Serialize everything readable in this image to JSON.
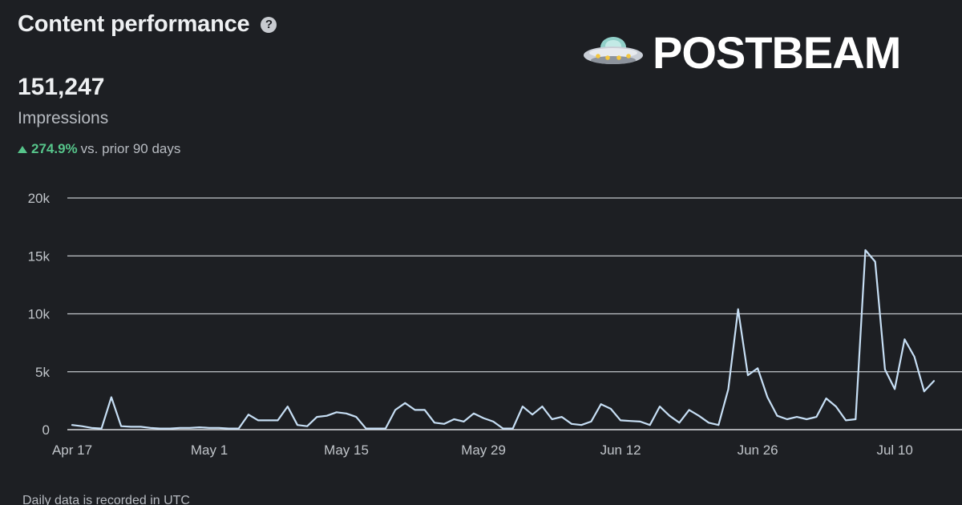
{
  "header": {
    "title": "Content performance",
    "help_icon": "help-icon"
  },
  "brand": {
    "logo_icon": "ufo-icon",
    "name": "POSTBEAM"
  },
  "metric": {
    "value": "151,247",
    "label": "Impressions",
    "change_pct": "274.9%",
    "change_suffix": "vs. prior 90 days",
    "change_color": "#56c48a"
  },
  "footnote": "Daily data is recorded in UTC",
  "chart_data": {
    "type": "line",
    "title": "",
    "xlabel": "",
    "ylabel": "",
    "ylim": [
      0,
      20000
    ],
    "yticks": [
      "0",
      "5k",
      "10k",
      "15k",
      "20k"
    ],
    "xticks": [
      "Apr 17",
      "May 1",
      "May 15",
      "May 29",
      "Jun 12",
      "Jun 26",
      "Jul 10"
    ],
    "grid": true,
    "line_color": "#c7dff5",
    "series": [
      {
        "values": [
          400,
          300,
          150,
          100,
          2800,
          300,
          250,
          250,
          150,
          100,
          100,
          150,
          150,
          200,
          150,
          150,
          100,
          100,
          1300,
          800,
          800,
          800,
          2000,
          400,
          300,
          1100,
          1200,
          1500,
          1400,
          1100,
          100,
          100,
          100,
          1700,
          2300,
          1700,
          1700,
          600,
          500,
          900,
          700,
          1400,
          1000,
          700,
          100,
          100,
          2000,
          1300,
          2000,
          900,
          1100,
          500,
          400,
          700,
          2200,
          1800,
          800,
          750,
          700,
          400,
          2000,
          1200,
          600,
          1700,
          1200,
          600,
          400,
          3500,
          10400,
          4700,
          5300,
          2800,
          1200,
          900,
          1100,
          900,
          1100,
          2700,
          2000,
          800,
          900,
          15500,
          14500,
          5200,
          3500,
          7800,
          6300,
          3300,
          4200
        ]
      }
    ]
  }
}
